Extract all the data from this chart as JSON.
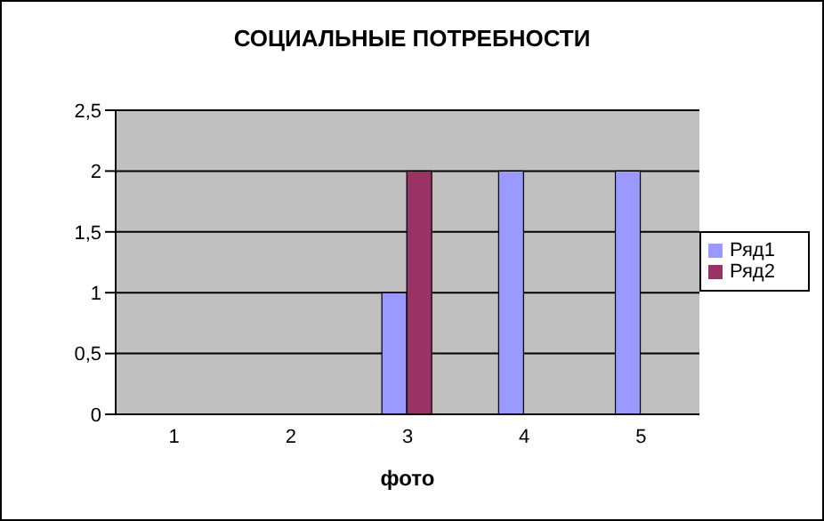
{
  "chart_data": {
    "type": "bar",
    "title": "СОЦИАЛЬНЫЕ ПОТРЕБНОСТИ",
    "xlabel": "фото",
    "categories": [
      "1",
      "2",
      "3",
      "4",
      "5"
    ],
    "series": [
      {
        "name": "Ряд1",
        "color": "#9999ff",
        "values": [
          null,
          null,
          1,
          2,
          2
        ]
      },
      {
        "name": "Ряд2",
        "color": "#993366",
        "values": [
          null,
          null,
          2,
          null,
          null
        ]
      }
    ],
    "ylim": [
      0,
      2.5
    ],
    "yticks": [
      0,
      {
        "value": 0.5,
        "label": "0,5"
      },
      1,
      {
        "value": 1.5,
        "label": "1,5"
      },
      2,
      {
        "value": 2.5,
        "label": "2,5"
      }
    ],
    "grid": "y",
    "legend": "right"
  }
}
